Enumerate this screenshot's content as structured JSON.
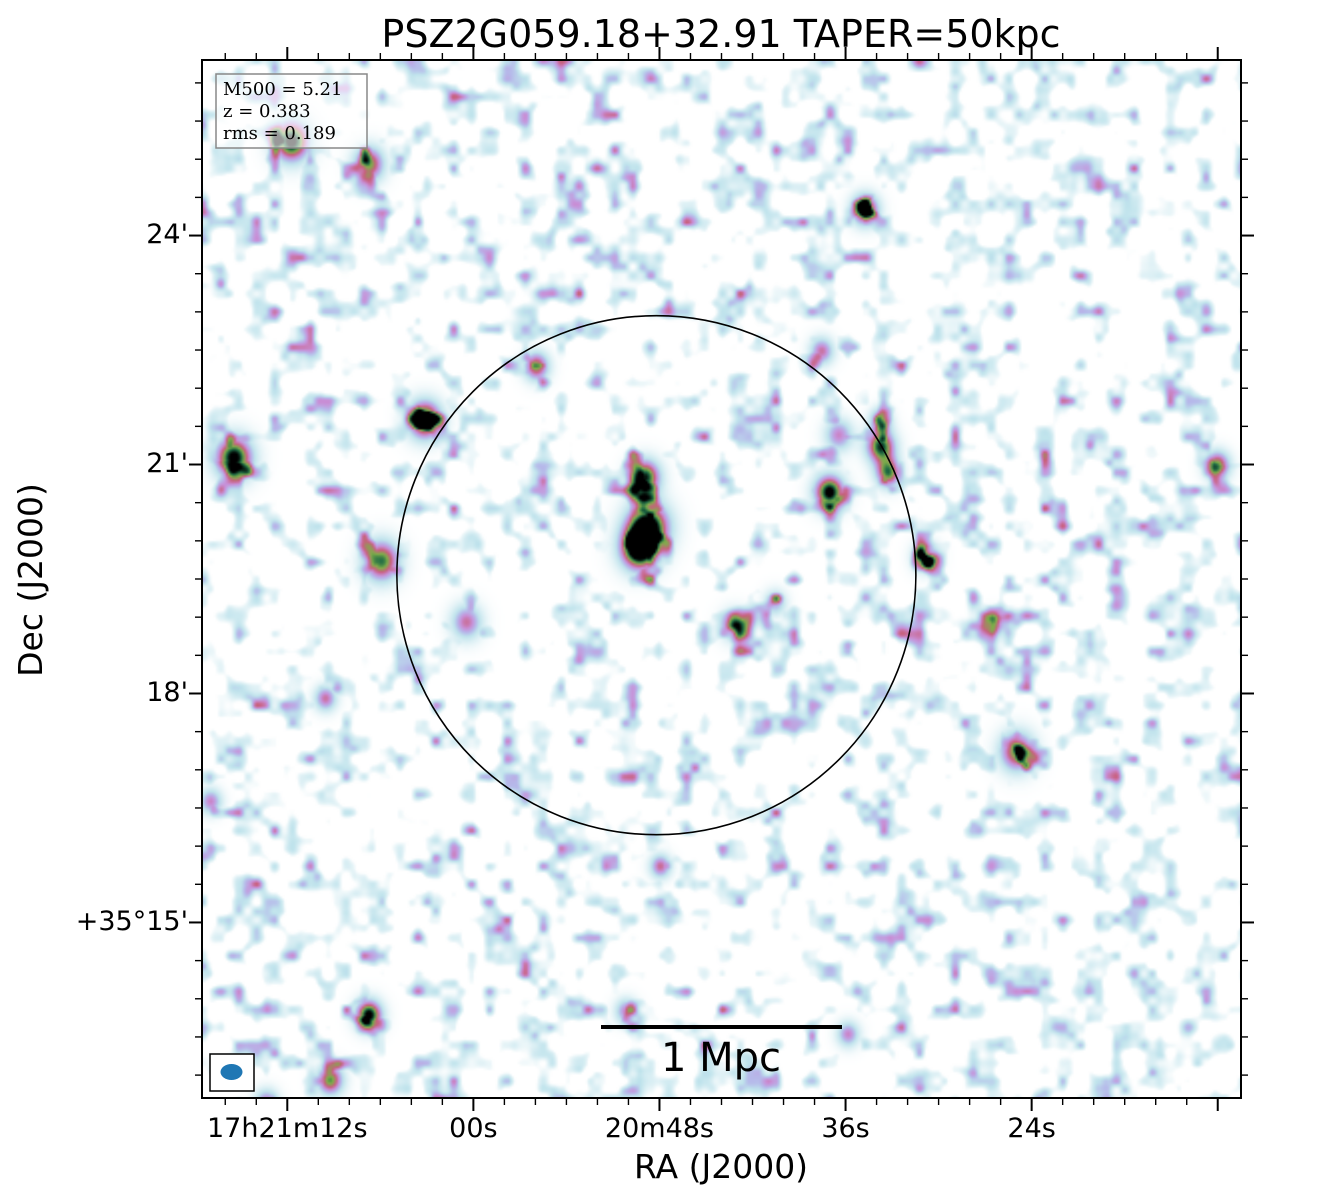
{
  "chart_data": {
    "type": "heatmap",
    "title": "PSZ2G059.18+32.91 TAPER=50kpc",
    "xlabel": "RA (J2000)",
    "ylabel": "Dec (J2000)",
    "x_ticks": [
      {
        "label": "17h21m12s",
        "ra_s": 72
      },
      {
        "label": "00s",
        "ra_s": 60
      },
      {
        "label": "20m48s",
        "ra_s": 48
      },
      {
        "label": "36s",
        "ra_s": 36
      },
      {
        "label": "24s",
        "ra_s": 24
      }
    ],
    "y_ticks": [
      {
        "label": "24'",
        "dec_arcmin": 24
      },
      {
        "label": "21'",
        "dec_arcmin": 21
      },
      {
        "label": "18'",
        "dec_arcmin": 18
      },
      {
        "label": "+35°15'",
        "dec_arcmin": 15
      }
    ],
    "x_range_ra_s": [
      77.5,
      10.5
    ],
    "y_range_dec_arcmin": [
      12.7,
      26.3
    ],
    "annotation": {
      "lines": [
        "M500 = 5.21",
        "z = 0.383",
        "rms = 0.189"
      ],
      "placement": "top-left"
    },
    "circle": {
      "center_ra_s": 48.2,
      "center_dec_arcmin": 19.55,
      "radius_arcmin": 3.4
    },
    "scalebar": {
      "label": "1 Mpc",
      "placement": "bottom-center"
    },
    "beam": {
      "placement": "bottom-left",
      "color": "#1f77b4"
    },
    "colormap": [
      "#ffffff",
      "#bfe3ec",
      "#b6b9ea",
      "#c890d8",
      "#c8607e",
      "#7fae4a",
      "#1e6a45",
      "#000000"
    ],
    "sources": [
      {
        "ra_s": 71.8,
        "dec_arcmin": 25.25,
        "peak": 1.0,
        "w": 1.3
      },
      {
        "ra_s": 66.8,
        "dec_arcmin": 24.95,
        "peak": 0.78,
        "w": 1.1
      },
      {
        "ra_s": 34.8,
        "dec_arcmin": 24.35,
        "peak": 0.93,
        "w": 0.95
      },
      {
        "ra_s": 75.5,
        "dec_arcmin": 21.1,
        "peak": 1.0,
        "w": 1.35
      },
      {
        "ra_s": 63.2,
        "dec_arcmin": 21.6,
        "peak": 1.0,
        "w": 1.2
      },
      {
        "ra_s": 56.0,
        "dec_arcmin": 22.3,
        "peak": 0.75,
        "w": 0.9
      },
      {
        "ra_s": 49.0,
        "dec_arcmin": 20.85,
        "peak": 0.92,
        "w": 1.1
      },
      {
        "ra_s": 48.8,
        "dec_arcmin": 20.2,
        "peak": 1.0,
        "w": 1.55
      },
      {
        "ra_s": 49.4,
        "dec_arcmin": 19.9,
        "peak": 1.0,
        "w": 1.35
      },
      {
        "ra_s": 37.1,
        "dec_arcmin": 20.65,
        "peak": 1.0,
        "w": 1.1
      },
      {
        "ra_s": 33.8,
        "dec_arcmin": 21.25,
        "peak": 0.9,
        "w": 1.05
      },
      {
        "ra_s": 33.3,
        "dec_arcmin": 20.9,
        "peak": 0.8,
        "w": 0.9
      },
      {
        "ra_s": 33.8,
        "dec_arcmin": 21.6,
        "peak": 0.62,
        "w": 0.75
      },
      {
        "ra_s": 36.5,
        "dec_arcmin": 21.4,
        "peak": 0.55,
        "w": 1.0
      },
      {
        "ra_s": 30.9,
        "dec_arcmin": 19.8,
        "peak": 0.65,
        "w": 0.9
      },
      {
        "ra_s": 37.6,
        "dec_arcmin": 22.5,
        "peak": 0.6,
        "w": 0.85
      },
      {
        "ra_s": 12.1,
        "dec_arcmin": 21.0,
        "peak": 0.8,
        "w": 0.9
      },
      {
        "ra_s": 66.0,
        "dec_arcmin": 19.75,
        "peak": 0.85,
        "w": 1.3
      },
      {
        "ra_s": 60.5,
        "dec_arcmin": 18.95,
        "peak": 0.6,
        "w": 1.1
      },
      {
        "ra_s": 69.6,
        "dec_arcmin": 17.95,
        "peak": 0.6,
        "w": 0.8
      },
      {
        "ra_s": 26.5,
        "dec_arcmin": 18.9,
        "peak": 0.62,
        "w": 0.8
      },
      {
        "ra_s": 25.0,
        "dec_arcmin": 17.25,
        "peak": 0.8,
        "w": 1.25
      },
      {
        "ra_s": 77.0,
        "dec_arcmin": 16.6,
        "peak": 0.55,
        "w": 0.8
      },
      {
        "ra_s": 48.0,
        "dec_arcmin": 15.75,
        "peak": 0.62,
        "w": 0.75
      },
      {
        "ra_s": 66.8,
        "dec_arcmin": 13.8,
        "peak": 1.0,
        "w": 0.95
      },
      {
        "ra_s": 69.3,
        "dec_arcmin": 12.95,
        "peak": 0.8,
        "w": 0.95
      },
      {
        "ra_s": 50.2,
        "dec_arcmin": 13.85,
        "peak": 0.55,
        "w": 0.8
      },
      {
        "ra_s": 73.4,
        "dec_arcmin": 12.65,
        "peak": 0.6,
        "w": 0.85
      },
      {
        "ra_s": 35.9,
        "dec_arcmin": 13.55,
        "peak": 0.55,
        "w": 0.8
      },
      {
        "ra_s": 43.2,
        "dec_arcmin": 18.9,
        "peak": 0.5,
        "w": 1.0
      },
      {
        "ra_s": 40.6,
        "dec_arcmin": 19.2,
        "peak": 0.45,
        "w": 0.8
      }
    ]
  }
}
